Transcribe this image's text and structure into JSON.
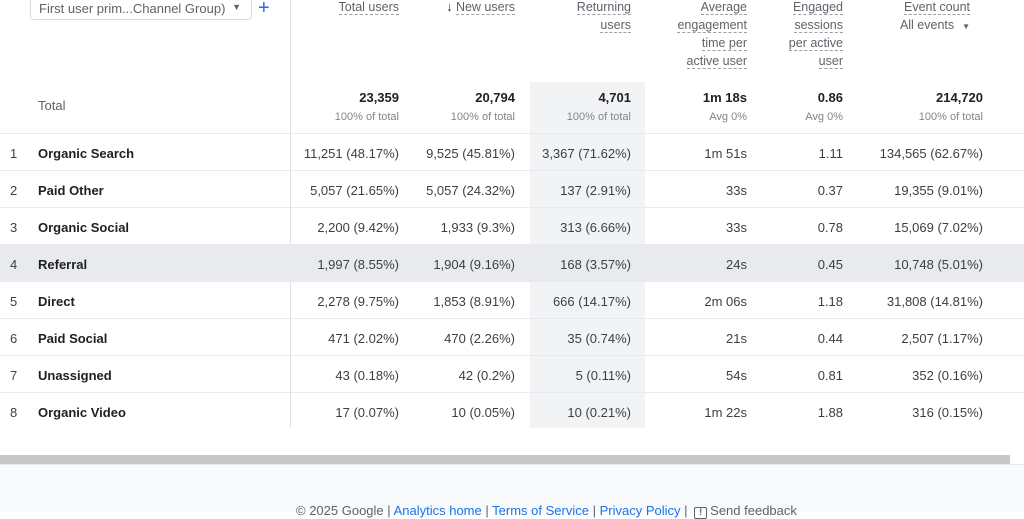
{
  "dimension": {
    "label": "First user prim...Channel Group)",
    "add_icon": "plus-icon"
  },
  "headers": {
    "total_users": "Total users",
    "new_users": "New users",
    "sort_icon": "arrow-down-icon",
    "returning_users": [
      "Returning",
      "users"
    ],
    "avg_engagement": [
      "Average",
      "engagement",
      "time per",
      "active user"
    ],
    "engaged_sessions": [
      "Engaged",
      "sessions",
      "per active",
      "user"
    ],
    "event_count": "Event count",
    "event_filter": "All events"
  },
  "totals": {
    "label": "Total",
    "values": [
      "23,359",
      "20,794",
      "4,701",
      "1m 18s",
      "0.86",
      "214,720"
    ],
    "subs": [
      "100% of total",
      "100% of total",
      "100% of total",
      "Avg 0%",
      "Avg 0%",
      "100% of total"
    ]
  },
  "rows": [
    {
      "n": "1",
      "name": "Organic Search",
      "v": [
        "11,251 (48.17%)",
        "9,525 (45.81%)",
        "3,367 (71.62%)",
        "1m 51s",
        "1.11",
        "134,565 (62.67%)"
      ]
    },
    {
      "n": "2",
      "name": "Paid Other",
      "v": [
        "5,057 (21.65%)",
        "5,057 (24.32%)",
        "137 (2.91%)",
        "33s",
        "0.37",
        "19,355 (9.01%)"
      ]
    },
    {
      "n": "3",
      "name": "Organic Social",
      "v": [
        "2,200 (9.42%)",
        "1,933 (9.3%)",
        "313 (6.66%)",
        "33s",
        "0.78",
        "15,069 (7.02%)"
      ]
    },
    {
      "n": "4",
      "name": "Referral",
      "v": [
        "1,997 (8.55%)",
        "1,904 (9.16%)",
        "168 (3.57%)",
        "24s",
        "0.45",
        "10,748 (5.01%)"
      ]
    },
    {
      "n": "5",
      "name": "Direct",
      "v": [
        "2,278 (9.75%)",
        "1,853 (8.91%)",
        "666 (14.17%)",
        "2m 06s",
        "1.18",
        "31,808 (14.81%)"
      ]
    },
    {
      "n": "6",
      "name": "Paid Social",
      "v": [
        "471 (2.02%)",
        "470 (2.26%)",
        "35 (0.74%)",
        "21s",
        "0.44",
        "2,507 (1.17%)"
      ]
    },
    {
      "n": "7",
      "name": "Unassigned",
      "v": [
        "43 (0.18%)",
        "42 (0.2%)",
        "5 (0.11%)",
        "54s",
        "0.81",
        "352 (0.16%)"
      ]
    },
    {
      "n": "8",
      "name": "Organic Video",
      "v": [
        "17 (0.07%)",
        "10 (0.05%)",
        "10 (0.21%)",
        "1m 22s",
        "1.88",
        "316 (0.15%)"
      ]
    }
  ],
  "footer": {
    "copyright": "© 2025 Google",
    "analytics_home": "Analytics home",
    "terms": "Terms of Service",
    "privacy": "Privacy Policy",
    "feedback": "Send feedback",
    "sep": "|"
  }
}
